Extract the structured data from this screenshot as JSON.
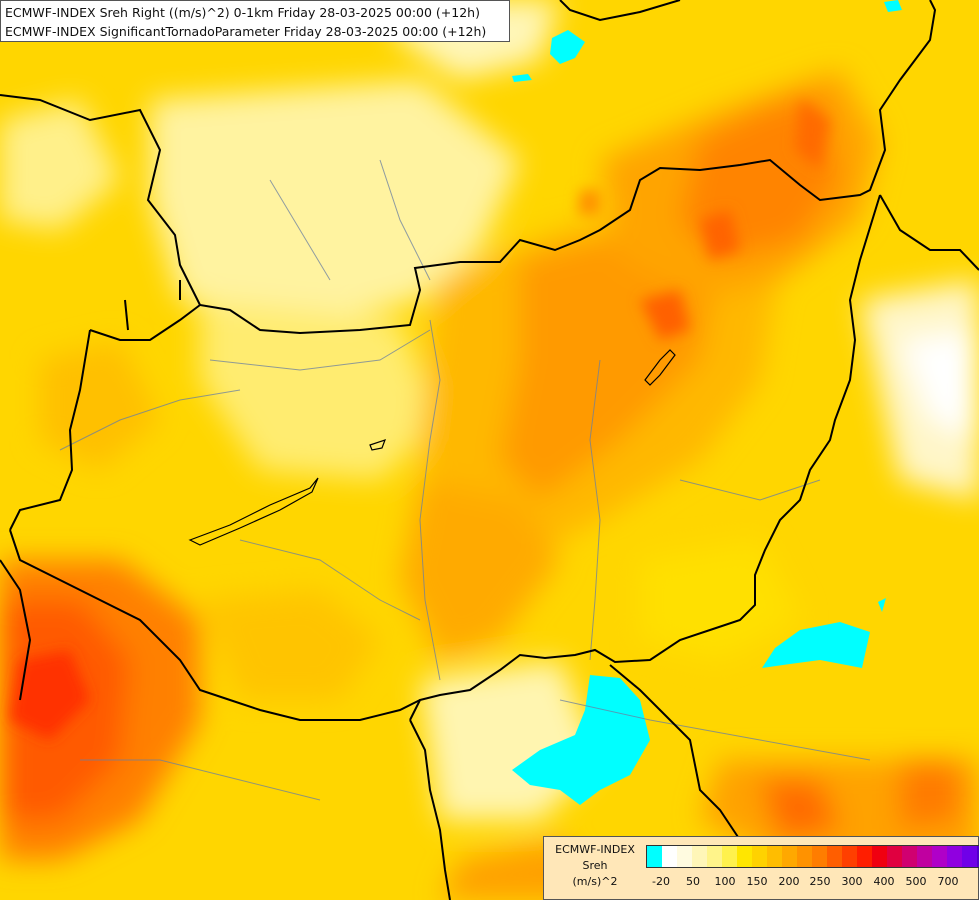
{
  "title_lines": [
    "ECMWF-INDEX Sreh Right ((m/s)^2) 0-1km Friday 28-03-2025 00:00 (+12h)",
    "ECMWF-INDEX SignificantTornadoParameter Friday 28-03-2025 00:00 (+12h)"
  ],
  "legend": {
    "title_line1": "ECMWF-INDEX",
    "title_line2": "Sreh",
    "title_line3": "(m/s)^2",
    "colors": [
      "#00ffff",
      "#ffffff",
      "#fffbe0",
      "#fff6b8",
      "#fff48a",
      "#fff14d",
      "#ffe600",
      "#ffd200",
      "#ffbd00",
      "#ffa800",
      "#ff9200",
      "#ff7d00",
      "#ff5e00",
      "#ff3f00",
      "#ff1e00",
      "#f00010",
      "#e00040",
      "#d00070",
      "#c000a0",
      "#b000c8",
      "#9000e0",
      "#7000e8",
      "#5000c8",
      "#3000a0",
      "#100080"
    ],
    "ticks": [
      "-20",
      "50",
      "100",
      "150",
      "200",
      "250",
      "300",
      "400",
      "500",
      "700"
    ]
  }
}
